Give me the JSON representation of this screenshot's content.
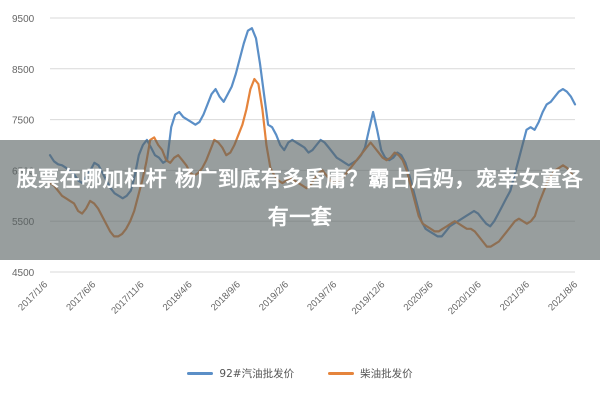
{
  "headline": "股票在哪加杠杆 杨广到底有多昏庸？霸占后妈，宠幸女童各有一套",
  "chart_data": {
    "type": "line",
    "ylim": [
      4500,
      9500
    ],
    "yticks": [
      4500,
      5500,
      6500,
      7500,
      8500,
      9500
    ],
    "x_tick_labels": [
      "2017/1/6",
      "2017/6/6",
      "2017/11/6",
      "2018/4/6",
      "2018/9/6",
      "2019/2/6",
      "2019/7/6",
      "2019/12/6",
      "2020/5/6",
      "2020/10/6",
      "2021/3/6",
      "2021/8/6"
    ],
    "grid": true,
    "legend_position": "bottom",
    "series": [
      {
        "name": "92#汽油批发价",
        "color": "#5b8fc7",
        "values": [
          6800,
          6680,
          6620,
          6600,
          6550,
          6480,
          6420,
          6300,
          6250,
          6380,
          6500,
          6650,
          6600,
          6450,
          6300,
          6150,
          6050,
          6000,
          5950,
          6000,
          6100,
          6400,
          6800,
          7000,
          7100,
          6950,
          6800,
          6750,
          6650,
          6700,
          7350,
          7600,
          7650,
          7550,
          7500,
          7450,
          7400,
          7450,
          7600,
          7800,
          8000,
          8100,
          7950,
          7850,
          8000,
          8150,
          8400,
          8700,
          9000,
          9250,
          9300,
          9100,
          8600,
          8000,
          7400,
          7350,
          7200,
          7000,
          6900,
          7050,
          7100,
          7050,
          7000,
          6950,
          6850,
          6900,
          7000,
          7100,
          7050,
          6950,
          6850,
          6750,
          6700,
          6650,
          6600,
          6650,
          6700,
          6800,
          6950,
          7300,
          7650,
          7300,
          6900,
          6750,
          6700,
          6750,
          6850,
          6800,
          6650,
          6400,
          6100,
          5800,
          5500,
          5350,
          5300,
          5250,
          5200,
          5200,
          5300,
          5400,
          5450,
          5500,
          5550,
          5600,
          5650,
          5700,
          5650,
          5550,
          5450,
          5400,
          5500,
          5650,
          5800,
          5950,
          6100,
          6400,
          6700,
          7000,
          7300,
          7350,
          7300,
          7450,
          7650,
          7800,
          7850,
          7950,
          8050,
          8100,
          8050,
          7950,
          7800
        ]
      },
      {
        "name": "柴油批发价",
        "color": "#e5843c",
        "values": [
          6250,
          6200,
          6100,
          6000,
          5950,
          5900,
          5850,
          5700,
          5650,
          5750,
          5900,
          5850,
          5750,
          5600,
          5450,
          5300,
          5200,
          5200,
          5250,
          5350,
          5500,
          5700,
          6000,
          6300,
          6650,
          7100,
          7150,
          7000,
          6900,
          6700,
          6650,
          6750,
          6800,
          6700,
          6600,
          6450,
          6400,
          6450,
          6550,
          6700,
          6900,
          7100,
          7050,
          6950,
          6800,
          6850,
          7000,
          7200,
          7400,
          7700,
          8100,
          8300,
          8200,
          7700,
          7000,
          6550,
          6400,
          6300,
          6250,
          6300,
          6350,
          6300,
          6250,
          6200,
          6150,
          6200,
          6350,
          6450,
          6500,
          6400,
          6300,
          6250,
          6300,
          6350,
          6450,
          6550,
          6650,
          6750,
          6850,
          6950,
          7050,
          6950,
          6850,
          6750,
          6700,
          6750,
          6850,
          6800,
          6700,
          6500,
          6200,
          5900,
          5600,
          5450,
          5400,
          5350,
          5300,
          5300,
          5350,
          5400,
          5450,
          5500,
          5450,
          5400,
          5350,
          5350,
          5300,
          5200,
          5100,
          5000,
          5000,
          5050,
          5100,
          5200,
          5300,
          5400,
          5500,
          5550,
          5500,
          5450,
          5500,
          5600,
          5850,
          6050,
          6250,
          6400,
          6500,
          6550,
          6600,
          6550,
          6450,
          6350
        ]
      }
    ]
  }
}
